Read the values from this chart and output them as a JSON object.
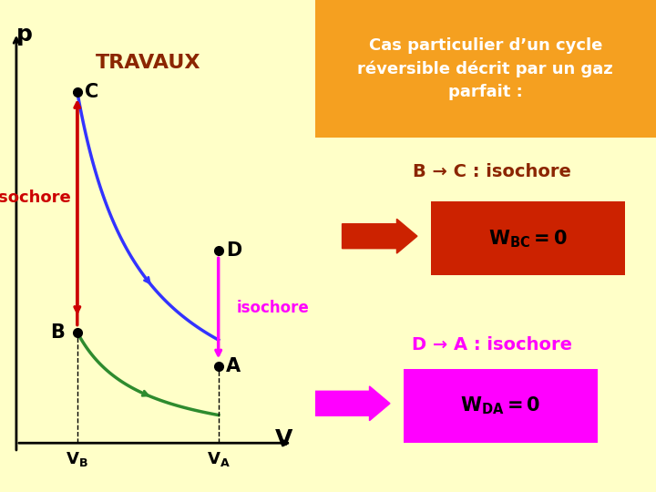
{
  "bg_color": "#FFFFC8",
  "orange_box_color": "#F5A020",
  "orange_box_text": "Cas particulier d’un cycle\nréversible décrit par un gaz\nparfait :",
  "orange_box_text_color": "#FFFFFF",
  "travaux_text": "TRAVAUX",
  "travaux_color": "#8B2500",
  "title_text": "p",
  "axis_color": "#000000",
  "curve_BC_color": "#3333FF",
  "curve_BA_color": "#2E8B2E",
  "isochore_CB_color": "#CC0000",
  "isochore_DA_color": "#FF00FF",
  "point_labels": [
    "B",
    "C",
    "D",
    "A"
  ],
  "points": {
    "B": [
      1.0,
      2.5
    ],
    "C": [
      1.0,
      7.5
    ],
    "D": [
      3.2,
      4.2
    ],
    "A": [
      3.2,
      1.8
    ]
  },
  "VB_label": "V B",
  "VA_label": "V A",
  "V_label": "V",
  "isochore_left_label": "isochore",
  "isochore_right_label": "isochore",
  "isochore_left_color": "#CC0000",
  "isochore_right_color": "#FF00FF",
  "BC_label": "B → C : isochore",
  "BC_label_color": "#8B2500",
  "WBC_label": "W$_{BC}$ = 0",
  "WBC_box_color": "#CC2200",
  "WBC_text_color": "#000000",
  "DA_label": "D → A : isochore",
  "DA_label_color": "#FF00FF",
  "WDA_label": "W$_{DA}$ = 0",
  "WDA_box_color": "#FF00FF",
  "WDA_text_color": "#000000",
  "arrow_red_color": "#CC0000",
  "arrow_magenta_color": "#FF00FF"
}
